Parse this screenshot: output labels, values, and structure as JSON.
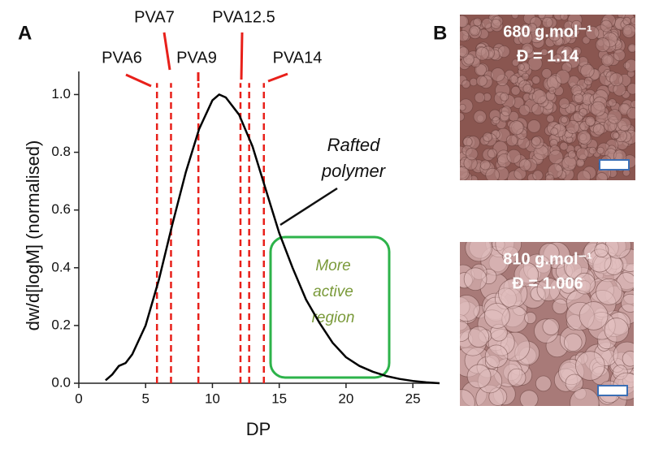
{
  "chart_data": {
    "type": "line",
    "panel_label": "A",
    "x_label": "DP",
    "y_label": "dw/d[logM] (normalised)",
    "xlim": [
      0,
      27
    ],
    "ylim": [
      0,
      1.08
    ],
    "xticks": [
      0,
      5,
      10,
      15,
      20,
      25
    ],
    "yticks": [
      {
        "value": 0,
        "label": "0.0"
      },
      0.2,
      0.4,
      0.6,
      0.8,
      {
        "value": 1,
        "label": "1.0"
      }
    ],
    "x": [
      2,
      2.5,
      3,
      3.5,
      4,
      5,
      6,
      7,
      8,
      9,
      10,
      10.5,
      11,
      12,
      13,
      14,
      15,
      16,
      17,
      18,
      19,
      20,
      21,
      22,
      23,
      24,
      25,
      26,
      27
    ],
    "series": [
      {
        "name": "Rafted polymer",
        "color": "#000000",
        "values": [
          0.01,
          0.03,
          0.06,
          0.07,
          0.1,
          0.2,
          0.36,
          0.55,
          0.73,
          0.88,
          0.98,
          1.0,
          0.99,
          0.93,
          0.82,
          0.67,
          0.52,
          0.4,
          0.29,
          0.21,
          0.14,
          0.09,
          0.06,
          0.04,
          0.025,
          0.015,
          0.008,
          0.003,
          0.0
        ]
      }
    ],
    "reference_lines": [
      {
        "label": "PVA6",
        "x": [
          5.85
        ]
      },
      {
        "label": "PVA7",
        "x": [
          6.9
        ]
      },
      {
        "label": "PVA9",
        "x": [
          8.95
        ]
      },
      {
        "label": "PVA12.5",
        "x": [
          12.1,
          12.75
        ]
      },
      {
        "label": "PVA14",
        "x": [
          13.85
        ]
      }
    ],
    "reference_color": "#e8201a",
    "annotations": [
      {
        "lines": [
          "Rafted",
          "polymer"
        ]
      },
      {
        "lines": [
          "More",
          "active",
          "region"
        ]
      }
    ]
  },
  "panel_b": {
    "panel_label": "B",
    "images": [
      {
        "molar_mass": "680 g.mol⁻¹",
        "dispersity": "Đ = 1.14"
      },
      {
        "molar_mass": "810 g.mol⁻¹",
        "dispersity": "Đ = 1.006"
      }
    ]
  }
}
